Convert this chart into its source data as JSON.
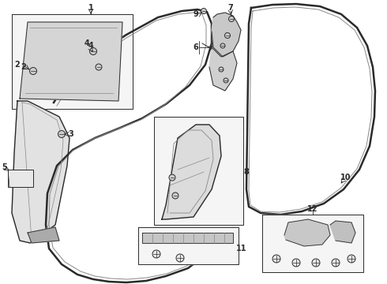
{
  "bg_color": "#ffffff",
  "lc": "#2a2a2a",
  "lc_gray": "#888888",
  "fill_box": "#f5f5f5",
  "fill_part": "#e0e0e0",
  "fill_part2": "#d0d0d0",
  "lw_thick": 1.8,
  "lw_med": 1.0,
  "lw_thin": 0.7,
  "label_fs": 7.0
}
